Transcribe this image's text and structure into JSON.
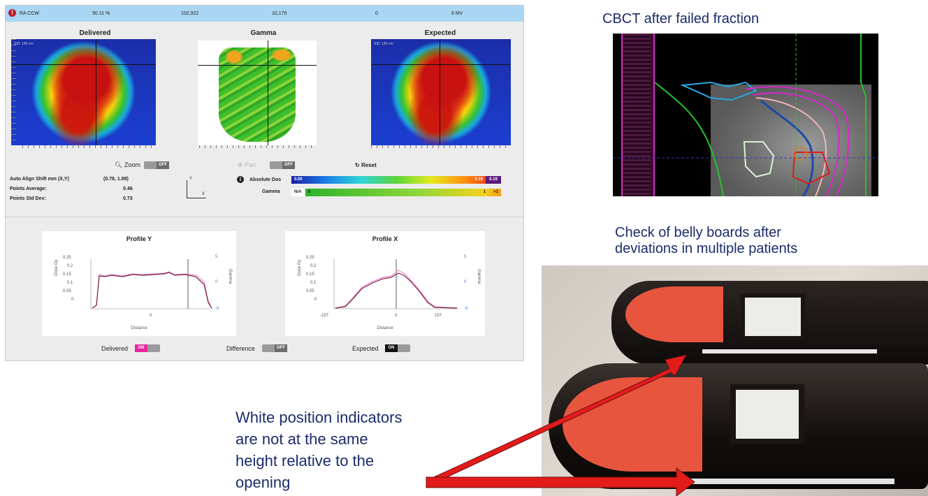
{
  "header": {
    "plan": "RA CCW",
    "col2": "90.11 %",
    "col3": "102,922",
    "col4": "10,170",
    "col5": "0",
    "col6": "6 MV"
  },
  "panels": {
    "delivered_title": "Delivered",
    "gamma_title": "Gamma",
    "expected_title": "Expected",
    "sid_label": "SID: 140 cm"
  },
  "controls": {
    "zoom_label": "Zoom",
    "pan_label": "Pan",
    "off": "OFF",
    "on": "ON",
    "reset_label": "Reset"
  },
  "stats": {
    "auto_align_label": "Auto Align Shift mm (X,Y)",
    "auto_align_value": "(0.78, 1.98)",
    "points_average_label": "Points Average:",
    "points_average_value": "0.46",
    "points_std_label": "Points Std Dev:",
    "points_std_value": "0.73"
  },
  "legend": {
    "abs_dose_label": "Absolute Dos",
    "abs_min": "0.00",
    "abs_max": "0.19",
    "abs_max2": "0.19",
    "gamma_label": "Gamma",
    "gamma_na": "N/A",
    "gamma_zero": "0",
    "gamma_one": "1",
    "gamma_gt1": ">1",
    "axis_y": "Y",
    "axis_x": "X"
  },
  "profiles": {
    "profile_y": {
      "title": "Profile Y",
      "ylabel": "Dose Gy",
      "y2label": "Gamma",
      "xlabel": "Distance",
      "yticks": [
        "0.25",
        "0.2",
        "0.15",
        "0.1",
        "0.05",
        "0"
      ],
      "y2ticks": [
        "5",
        "0",
        "-5"
      ],
      "xticks": [
        "0"
      ]
    },
    "profile_x": {
      "title": "Profile X",
      "ylabel": "Dose Gy",
      "y2label": "Gamma",
      "xlabel": "Distance",
      "yticks": [
        "0.25",
        "0.2",
        "0.15",
        "0.1",
        "0.05",
        "0"
      ],
      "y2ticks": [
        "5",
        "0",
        "-5"
      ],
      "xticks": [
        "-157",
        "0",
        "157"
      ]
    }
  },
  "bottom_toggles": {
    "delivered": "Delivered",
    "difference": "Difference",
    "expected": "Expected"
  },
  "colors": {
    "header_bg": "#a9d6f2",
    "toggle_on_pink": "#e8249f",
    "annotation_text": "#1a2c6b",
    "arrow_red": "#e41b1b"
  },
  "right": {
    "cbct_title": "CBCT after failed fraction",
    "belly_title_line1": "Check of belly boards after",
    "belly_title_line2": "deviations in multiple patients"
  },
  "caption": {
    "line1": "White position indicators",
    "line2": "are not at the same",
    "line3": "height relative to the",
    "line4": "opening"
  }
}
